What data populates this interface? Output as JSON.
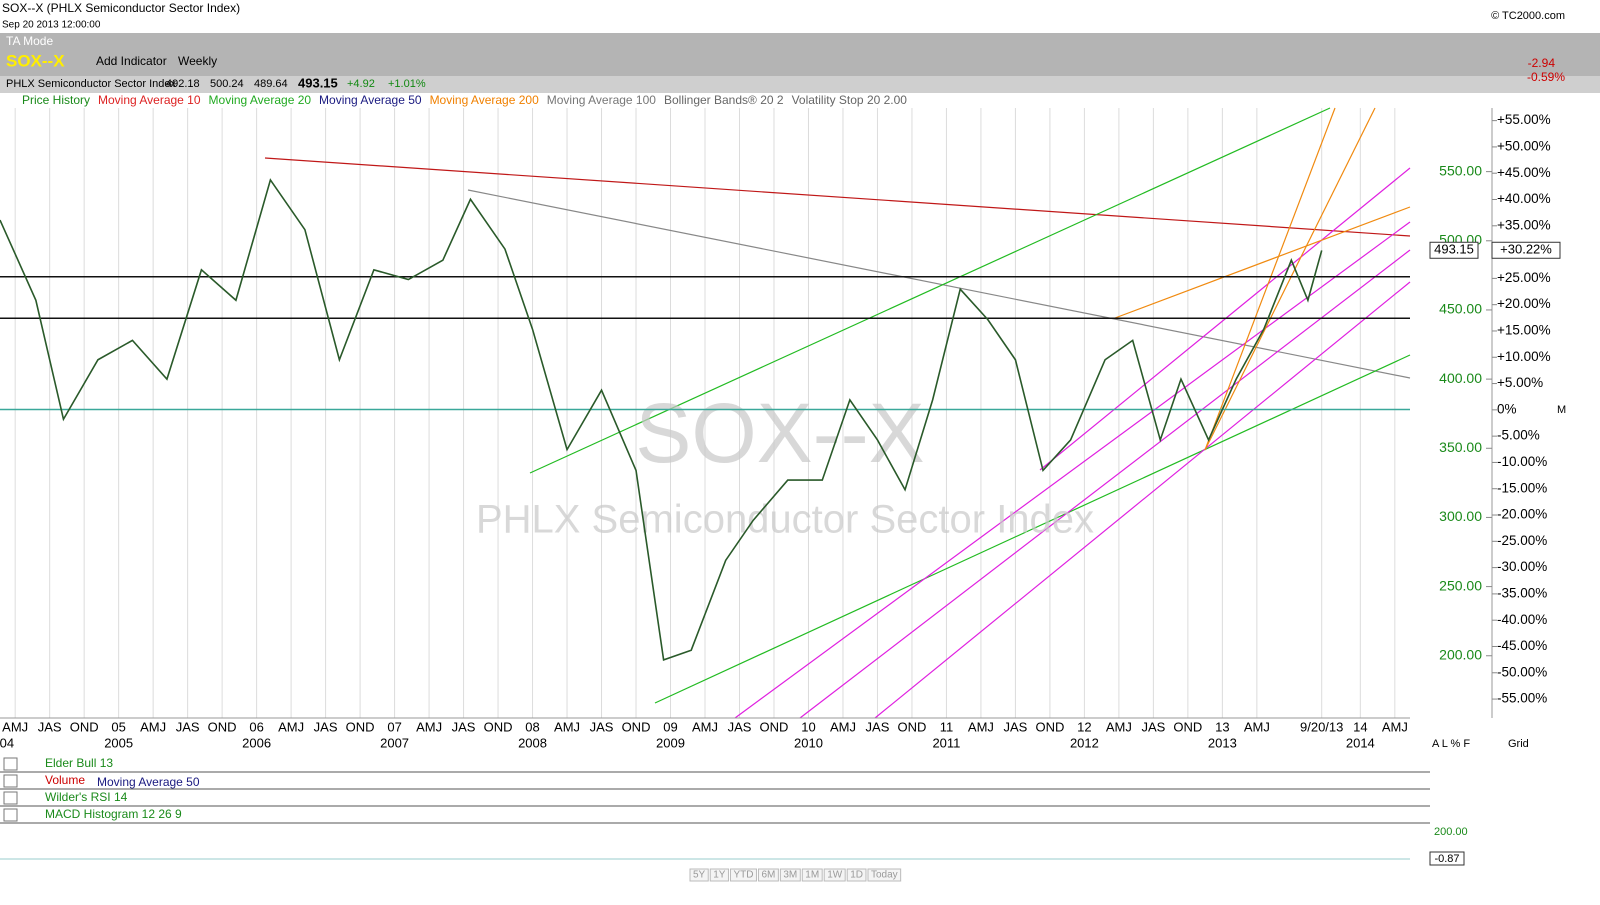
{
  "header": {
    "title": "SOX--X (PHLX Semiconductor Sector Index)",
    "datetime": "Sep 20 2013 12:00:00",
    "copyright": "© TC2000.com"
  },
  "toolbar": {
    "mode": "TA Mode",
    "symbol": "SOX--X",
    "add_indicator": "Add Indicator",
    "period": "Weekly"
  },
  "quote": {
    "name": "PHLX Semiconductor Sector Index",
    "open": "492.18",
    "high": "500.24",
    "low": "489.64",
    "close": "493.15",
    "change": "+4.92",
    "change_pct": "+1.01%",
    "day_change": "-2.94",
    "day_change_pct": "-0.59%",
    "close_pct": "+30.22%"
  },
  "indicators": [
    {
      "name": "Price History",
      "color": "#1a8a1a"
    },
    {
      "name": "Moving Average 10",
      "color": "#dd2222"
    },
    {
      "name": "Moving Average 20",
      "color": "#22aa22"
    },
    {
      "name": "Moving Average 50",
      "color": "#1a1a80"
    },
    {
      "name": "Moving Average 200",
      "color": "#f08000"
    },
    {
      "name": "Moving Average 100",
      "color": "#777777"
    },
    {
      "name": "Bollinger Bands® 20 2",
      "color": "#666666"
    },
    {
      "name": "Volatility Stop 20 2.00",
      "color": "#666666"
    }
  ],
  "chart_data": {
    "type": "line",
    "watermark": "SOX--X",
    "watermark_name": "PHLX Semiconductor Sector Index",
    "xlim": [
      2004.14,
      2014.36
    ],
    "ylim": [
      155,
      596
    ],
    "y2lim": [
      -58.6,
      57.4
    ],
    "xticks": [
      {
        "value": 2004.25,
        "label": "AMJ"
      },
      {
        "value": 2004.5,
        "label": "JAS"
      },
      {
        "value": 2004.75,
        "label": "OND"
      },
      {
        "value": 2005,
        "label": "05"
      },
      {
        "value": 2005.25,
        "label": "AMJ"
      },
      {
        "value": 2005.5,
        "label": "JAS"
      },
      {
        "value": 2005.75,
        "label": "OND"
      },
      {
        "value": 2006,
        "label": "06"
      },
      {
        "value": 2006.25,
        "label": "AMJ"
      },
      {
        "value": 2006.5,
        "label": "JAS"
      },
      {
        "value": 2006.75,
        "label": "OND"
      },
      {
        "value": 2007,
        "label": "07"
      },
      {
        "value": 2007.25,
        "label": "AMJ"
      },
      {
        "value": 2007.5,
        "label": "JAS"
      },
      {
        "value": 2007.75,
        "label": "OND"
      },
      {
        "value": 2008,
        "label": "08"
      },
      {
        "value": 2008.25,
        "label": "AMJ"
      },
      {
        "value": 2008.5,
        "label": "JAS"
      },
      {
        "value": 2008.75,
        "label": "OND"
      },
      {
        "value": 2009,
        "label": "09"
      },
      {
        "value": 2009.25,
        "label": "AMJ"
      },
      {
        "value": 2009.5,
        "label": "JAS"
      },
      {
        "value": 2009.75,
        "label": "OND"
      },
      {
        "value": 2010,
        "label": "10"
      },
      {
        "value": 2010.25,
        "label": "AMJ"
      },
      {
        "value": 2010.5,
        "label": "JAS"
      },
      {
        "value": 2010.75,
        "label": "OND"
      },
      {
        "value": 2011,
        "label": "11"
      },
      {
        "value": 2011.25,
        "label": "AMJ"
      },
      {
        "value": 2011.5,
        "label": "JAS"
      },
      {
        "value": 2011.75,
        "label": "OND"
      },
      {
        "value": 2012,
        "label": "12"
      },
      {
        "value": 2012.25,
        "label": "AMJ"
      },
      {
        "value": 2012.5,
        "label": "JAS"
      },
      {
        "value": 2012.75,
        "label": "OND"
      },
      {
        "value": 2013,
        "label": "13"
      },
      {
        "value": 2013.25,
        "label": "AMJ"
      },
      {
        "value": 2013.72,
        "label": "9/20/13"
      },
      {
        "value": 2014,
        "label": "14"
      },
      {
        "value": 2014.25,
        "label": "AMJ"
      }
    ],
    "year_labels": [
      {
        "value": 2004.19,
        "label": "04"
      },
      {
        "value": 2005,
        "label": "2005"
      },
      {
        "value": 2006,
        "label": "2006"
      },
      {
        "value": 2007,
        "label": "2007"
      },
      {
        "value": 2008,
        "label": "2008"
      },
      {
        "value": 2009,
        "label": "2009"
      },
      {
        "value": 2010,
        "label": "2010"
      },
      {
        "value": 2011,
        "label": "2011"
      },
      {
        "value": 2012,
        "label": "2012"
      },
      {
        "value": 2013,
        "label": "2013"
      },
      {
        "value": 2014,
        "label": "2014"
      }
    ],
    "yticks": [
      {
        "value": 550,
        "label": "550.00"
      },
      {
        "value": 500,
        "label": "500.00"
      },
      {
        "value": 450,
        "label": "450.00"
      },
      {
        "value": 400,
        "label": "400.00"
      },
      {
        "value": 350,
        "label": "350.00"
      },
      {
        "value": 300,
        "label": "300.00"
      },
      {
        "value": 250,
        "label": "250.00"
      },
      {
        "value": 200,
        "label": "200.00"
      }
    ],
    "y2ticks": [
      {
        "value": 55,
        "label": "+55.00%"
      },
      {
        "value": 50,
        "label": "+50.00%"
      },
      {
        "value": 45,
        "label": "+45.00%"
      },
      {
        "value": 40,
        "label": "+40.00%"
      },
      {
        "value": 35,
        "label": "+35.00%"
      },
      {
        "value": 30,
        "label": "+30.00%"
      },
      {
        "value": 25,
        "label": "+25.00%"
      },
      {
        "value": 20,
        "label": "+20.00%"
      },
      {
        "value": 15,
        "label": "+15.00%"
      },
      {
        "value": 10,
        "label": "+10.00%"
      },
      {
        "value": 5,
        "label": "+5.00%"
      },
      {
        "value": 0,
        "label": "0%"
      },
      {
        "value": -5,
        "label": "-5.00%"
      },
      {
        "value": -10,
        "label": "-10.00%"
      },
      {
        "value": -15,
        "label": "-15.00%"
      },
      {
        "value": -20,
        "label": "-20.00%"
      },
      {
        "value": -25,
        "label": "-25.00%"
      },
      {
        "value": -30,
        "label": "-30.00%"
      },
      {
        "value": -35,
        "label": "-35.00%"
      },
      {
        "value": -40,
        "label": "-40.00%"
      },
      {
        "value": -45,
        "label": "-45.00%"
      },
      {
        "value": -50,
        "label": "-50.00%"
      },
      {
        "value": -55,
        "label": "-55.00%"
      }
    ],
    "levels": [
      {
        "value": 474,
        "color": "#111111"
      },
      {
        "value": 444,
        "color": "#111111"
      },
      {
        "value": 378,
        "color": "#3aa89a"
      }
    ],
    "series": [
      {
        "name": "Price History",
        "color": "#2a5a2a",
        "x": [
          2004.14,
          2004.4,
          2004.6,
          2004.85,
          2005.1,
          2005.35,
          2005.6,
          2005.85,
          2006.1,
          2006.35,
          2006.6,
          2006.85,
          2007.1,
          2007.35,
          2007.55,
          2007.8,
          2008.0,
          2008.25,
          2008.5,
          2008.75,
          2008.95,
          2009.15,
          2009.4,
          2009.6,
          2009.85,
          2010.1,
          2010.3,
          2010.5,
          2010.7,
          2010.9,
          2011.1,
          2011.3,
          2011.5,
          2011.7,
          2011.9,
          2012.15,
          2012.35,
          2012.55,
          2012.7,
          2012.9,
          2013.1,
          2013.3,
          2013.5,
          2013.62,
          2013.72
        ],
        "values": [
          515,
          457,
          371,
          414,
          428,
          400,
          479,
          457,
          544,
          508,
          414,
          479,
          472,
          486,
          530,
          494,
          436,
          349,
          392,
          334,
          197,
          204,
          269,
          298,
          327,
          327,
          385,
          356,
          320,
          385,
          465,
          443,
          414,
          334,
          356,
          414,
          428,
          356,
          400,
          356,
          400,
          436,
          486,
          457,
          493
        ]
      }
    ]
  },
  "panels": [
    {
      "name": "Elder Bull 13"
    },
    {
      "name": "Volume",
      "extra": "Moving Average 50"
    },
    {
      "name": "Wilder's RSI 14"
    },
    {
      "name": "MACD Histogram 12 26 9",
      "top": "200.00",
      "last": "-0.87"
    }
  ],
  "controls": {
    "scale_buttons": [
      "5Y",
      "1Y",
      "YTD",
      "6M",
      "3M",
      "1M",
      "1W",
      "1D",
      "Today"
    ],
    "axis_modes": "A L % F",
    "grid": "Grid",
    "m": "M"
  }
}
